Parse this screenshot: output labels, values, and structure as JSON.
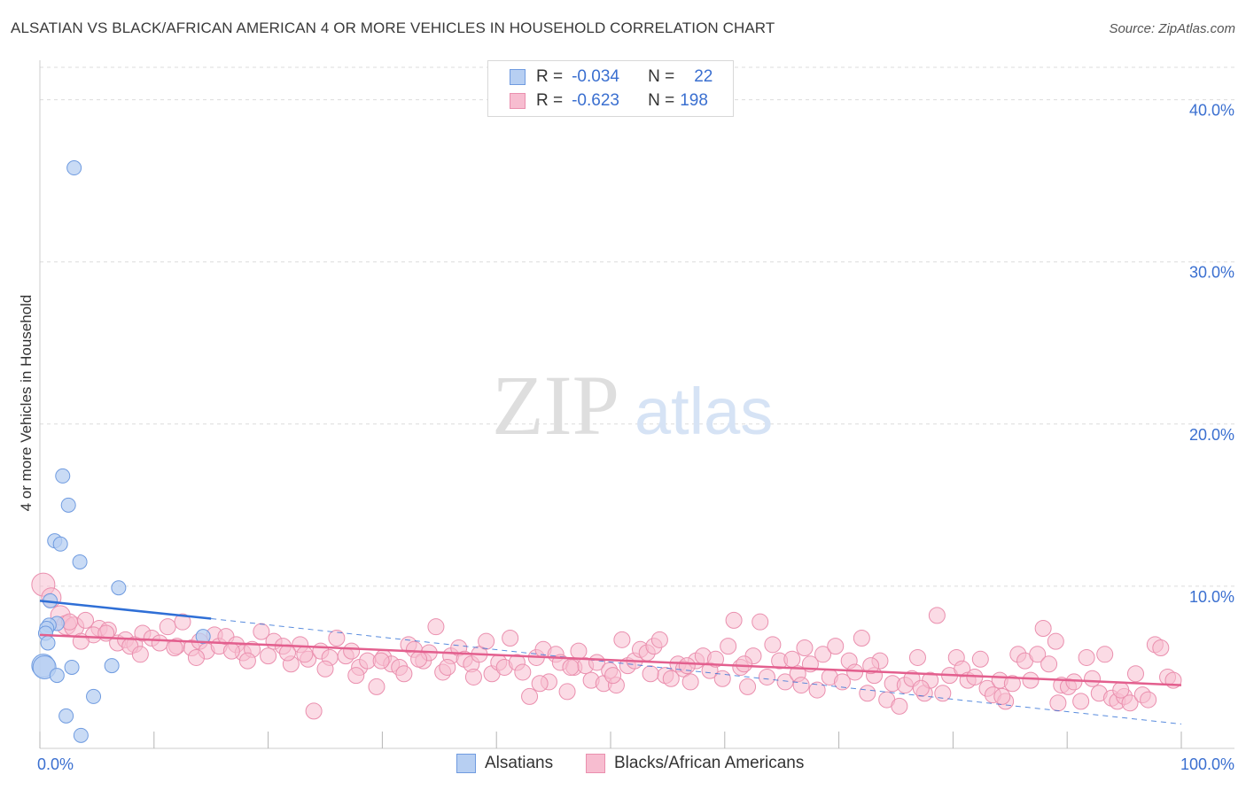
{
  "title": "ALSATIAN VS BLACK/AFRICAN AMERICAN 4 OR MORE VEHICLES IN HOUSEHOLD CORRELATION CHART",
  "source": "Source: ZipAtlas.com",
  "watermark": {
    "zip": "ZIP",
    "atlas": "atlas"
  },
  "legend": {
    "rows": [
      {
        "r_label": "R =",
        "r_value": "-0.034",
        "n_label": "N =",
        "n_value": "22"
      },
      {
        "r_label": "R =",
        "r_value": "-0.623",
        "n_label": "N =",
        "n_value": "198"
      }
    ]
  },
  "bottom_legend": {
    "series_a": "Alsatians",
    "series_b": "Blacks/African Americans"
  },
  "colors": {
    "blue_fill": "#b7cff2",
    "blue_stroke": "#6f9be0",
    "blue_line": "#2f6fd6",
    "pink_fill": "#f7bdd0",
    "pink_stroke": "#ea8fae",
    "pink_line": "#e35f8e",
    "axis_text": "#3a6fd0",
    "grid": "#dcdcdc"
  },
  "chart_data": {
    "type": "scatter",
    "title": "ALSATIAN VS BLACK/AFRICAN AMERICAN 4 OR MORE VEHICLES IN HOUSEHOLD CORRELATION CHART",
    "xlabel": "",
    "ylabel": "4 or more Vehicles in Household",
    "xlim": [
      0,
      100
    ],
    "ylim": [
      0,
      42
    ],
    "x_tick_labels": [
      "0.0%",
      "100.0%"
    ],
    "y_ticks": [
      10,
      20,
      30,
      40
    ],
    "y_tick_labels": [
      "10.0%",
      "20.0%",
      "30.0%",
      "40.0%"
    ],
    "series": [
      {
        "name": "Alsatians",
        "R": -0.034,
        "N": 22,
        "trend": {
          "x0": 0,
          "y0": 9.1,
          "x1": 15,
          "y1": 8.0,
          "dash_x1": 100,
          "dash_y1": 1.5
        },
        "points": [
          [
            3.0,
            35.8
          ],
          [
            2.0,
            16.8
          ],
          [
            2.5,
            15.0
          ],
          [
            1.3,
            12.8
          ],
          [
            1.8,
            12.6
          ],
          [
            3.5,
            11.5
          ],
          [
            6.9,
            9.9
          ],
          [
            0.9,
            9.1
          ],
          [
            1.5,
            7.7
          ],
          [
            0.8,
            7.6
          ],
          [
            0.6,
            7.4
          ],
          [
            0.5,
            7.1
          ],
          [
            14.3,
            6.9
          ],
          [
            0.7,
            6.5
          ],
          [
            0.3,
            5.1
          ],
          [
            0.4,
            5.0
          ],
          [
            2.8,
            5.0
          ],
          [
            6.3,
            5.1
          ],
          [
            1.5,
            4.5
          ],
          [
            4.7,
            3.2
          ],
          [
            2.3,
            2.0
          ],
          [
            3.6,
            0.8
          ]
        ]
      },
      {
        "name": "Blacks/African Americans",
        "R": -0.623,
        "N": 198,
        "trend": {
          "x0": 0,
          "y0": 7.0,
          "x1": 100,
          "y1": 3.9
        },
        "points": [
          [
            0.3,
            10.1
          ],
          [
            1.0,
            9.3
          ],
          [
            1.8,
            8.2
          ],
          [
            2.3,
            7.6
          ],
          [
            3.0,
            7.5
          ],
          [
            4.0,
            7.9
          ],
          [
            5.2,
            7.4
          ],
          [
            6.0,
            7.3
          ],
          [
            4.7,
            7.0
          ],
          [
            6.8,
            6.5
          ],
          [
            7.5,
            6.7
          ],
          [
            8.3,
            6.4
          ],
          [
            9.0,
            7.1
          ],
          [
            9.8,
            6.8
          ],
          [
            10.5,
            6.5
          ],
          [
            11.2,
            7.5
          ],
          [
            12.0,
            6.3
          ],
          [
            12.5,
            7.8
          ],
          [
            13.3,
            6.2
          ],
          [
            14.0,
            6.6
          ],
          [
            14.6,
            6.0
          ],
          [
            15.3,
            7.0
          ],
          [
            15.7,
            6.3
          ],
          [
            16.3,
            6.9
          ],
          [
            17.2,
            6.4
          ],
          [
            17.8,
            5.9
          ],
          [
            18.6,
            6.1
          ],
          [
            19.4,
            7.2
          ],
          [
            20.0,
            5.7
          ],
          [
            20.5,
            6.6
          ],
          [
            21.3,
            6.3
          ],
          [
            22.0,
            5.2
          ],
          [
            22.8,
            6.4
          ],
          [
            23.5,
            5.5
          ],
          [
            24.0,
            2.3
          ],
          [
            24.6,
            6.0
          ],
          [
            25.4,
            5.6
          ],
          [
            26.0,
            6.8
          ],
          [
            26.8,
            5.7
          ],
          [
            27.3,
            6.0
          ],
          [
            28.0,
            5.0
          ],
          [
            28.7,
            5.4
          ],
          [
            29.5,
            3.8
          ],
          [
            30.1,
            5.6
          ],
          [
            30.8,
            5.2
          ],
          [
            31.5,
            5.0
          ],
          [
            32.3,
            6.4
          ],
          [
            32.8,
            6.1
          ],
          [
            33.6,
            5.4
          ],
          [
            34.1,
            5.9
          ],
          [
            34.7,
            7.5
          ],
          [
            35.3,
            4.7
          ],
          [
            36.0,
            5.7
          ],
          [
            36.7,
            6.2
          ],
          [
            37.2,
            5.5
          ],
          [
            37.8,
            5.2
          ],
          [
            38.5,
            5.8
          ],
          [
            39.1,
            6.6
          ],
          [
            39.6,
            4.6
          ],
          [
            40.2,
            5.3
          ],
          [
            40.7,
            5.0
          ],
          [
            41.2,
            6.8
          ],
          [
            41.8,
            5.3
          ],
          [
            42.3,
            4.7
          ],
          [
            42.9,
            3.2
          ],
          [
            43.5,
            5.6
          ],
          [
            44.1,
            6.1
          ],
          [
            44.6,
            4.1
          ],
          [
            45.2,
            5.8
          ],
          [
            45.6,
            5.3
          ],
          [
            46.2,
            3.5
          ],
          [
            46.8,
            5.0
          ],
          [
            47.2,
            6.0
          ],
          [
            47.8,
            5.1
          ],
          [
            48.3,
            4.2
          ],
          [
            48.8,
            5.3
          ],
          [
            49.4,
            4.0
          ],
          [
            49.9,
            4.8
          ],
          [
            50.5,
            3.9
          ],
          [
            51.0,
            6.7
          ],
          [
            51.5,
            5.1
          ],
          [
            52.1,
            5.4
          ],
          [
            52.6,
            6.1
          ],
          [
            53.2,
            5.9
          ],
          [
            53.8,
            6.3
          ],
          [
            54.3,
            6.7
          ],
          [
            54.8,
            4.5
          ],
          [
            55.3,
            4.3
          ],
          [
            55.9,
            5.2
          ],
          [
            56.4,
            4.9
          ],
          [
            57.0,
            4.1
          ],
          [
            57.5,
            5.4
          ],
          [
            58.1,
            5.7
          ],
          [
            58.7,
            4.8
          ],
          [
            59.2,
            5.5
          ],
          [
            59.8,
            4.3
          ],
          [
            60.3,
            6.3
          ],
          [
            60.8,
            7.9
          ],
          [
            61.4,
            5.0
          ],
          [
            62.0,
            3.8
          ],
          [
            62.5,
            5.7
          ],
          [
            63.1,
            7.8
          ],
          [
            63.7,
            4.4
          ],
          [
            64.2,
            6.4
          ],
          [
            64.8,
            5.4
          ],
          [
            65.3,
            4.1
          ],
          [
            65.9,
            5.5
          ],
          [
            66.4,
            4.6
          ],
          [
            67.0,
            6.2
          ],
          [
            67.5,
            5.2
          ],
          [
            68.1,
            3.6
          ],
          [
            68.6,
            5.8
          ],
          [
            69.2,
            4.4
          ],
          [
            69.7,
            6.3
          ],
          [
            70.3,
            4.1
          ],
          [
            70.9,
            5.4
          ],
          [
            71.4,
            4.7
          ],
          [
            72.0,
            6.8
          ],
          [
            72.5,
            3.4
          ],
          [
            73.1,
            4.5
          ],
          [
            73.6,
            5.4
          ],
          [
            74.2,
            3.0
          ],
          [
            74.7,
            4.0
          ],
          [
            75.3,
            2.6
          ],
          [
            75.8,
            3.9
          ],
          [
            76.4,
            4.3
          ],
          [
            76.9,
            5.6
          ],
          [
            77.5,
            3.4
          ],
          [
            78.0,
            4.2
          ],
          [
            78.6,
            8.2
          ],
          [
            79.1,
            3.4
          ],
          [
            79.7,
            4.5
          ],
          [
            80.3,
            5.6
          ],
          [
            80.8,
            4.9
          ],
          [
            81.3,
            4.2
          ],
          [
            81.9,
            4.4
          ],
          [
            82.4,
            5.5
          ],
          [
            83.0,
            3.7
          ],
          [
            83.5,
            3.3
          ],
          [
            84.1,
            4.2
          ],
          [
            84.6,
            2.9
          ],
          [
            85.2,
            4.0
          ],
          [
            85.7,
            5.8
          ],
          [
            86.3,
            5.4
          ],
          [
            86.8,
            4.2
          ],
          [
            87.4,
            5.8
          ],
          [
            87.9,
            7.4
          ],
          [
            88.4,
            5.2
          ],
          [
            89.0,
            6.6
          ],
          [
            89.5,
            3.9
          ],
          [
            90.1,
            3.8
          ],
          [
            90.6,
            4.1
          ],
          [
            91.2,
            2.9
          ],
          [
            91.7,
            5.6
          ],
          [
            92.2,
            4.3
          ],
          [
            92.8,
            3.4
          ],
          [
            93.3,
            5.8
          ],
          [
            93.9,
            3.1
          ],
          [
            94.4,
            2.9
          ],
          [
            95.0,
            3.2
          ],
          [
            95.5,
            2.8
          ],
          [
            96.0,
            4.6
          ],
          [
            96.6,
            3.3
          ],
          [
            97.1,
            3.0
          ],
          [
            97.7,
            6.4
          ],
          [
            98.2,
            6.2
          ],
          [
            98.8,
            4.4
          ],
          [
            99.3,
            4.2
          ],
          [
            2.6,
            7.8
          ],
          [
            3.6,
            6.6
          ],
          [
            5.8,
            7.1
          ],
          [
            7.9,
            6.3
          ],
          [
            8.8,
            5.8
          ],
          [
            11.8,
            6.2
          ],
          [
            13.7,
            5.6
          ],
          [
            16.8,
            6.0
          ],
          [
            18.2,
            5.4
          ],
          [
            21.7,
            5.9
          ],
          [
            23.2,
            5.8
          ],
          [
            25.0,
            4.9
          ],
          [
            27.7,
            4.5
          ],
          [
            29.9,
            5.4
          ],
          [
            31.9,
            4.6
          ],
          [
            33.2,
            5.5
          ],
          [
            35.7,
            5.0
          ],
          [
            38.0,
            4.4
          ],
          [
            43.8,
            4.0
          ],
          [
            46.5,
            5.0
          ],
          [
            50.2,
            4.5
          ],
          [
            53.5,
            4.6
          ],
          [
            56.7,
            5.1
          ],
          [
            61.7,
            5.2
          ],
          [
            66.7,
            3.9
          ],
          [
            72.8,
            5.1
          ],
          [
            77.2,
            3.7
          ],
          [
            84.3,
            3.2
          ],
          [
            89.2,
            2.8
          ],
          [
            94.7,
            3.6
          ]
        ]
      }
    ]
  }
}
